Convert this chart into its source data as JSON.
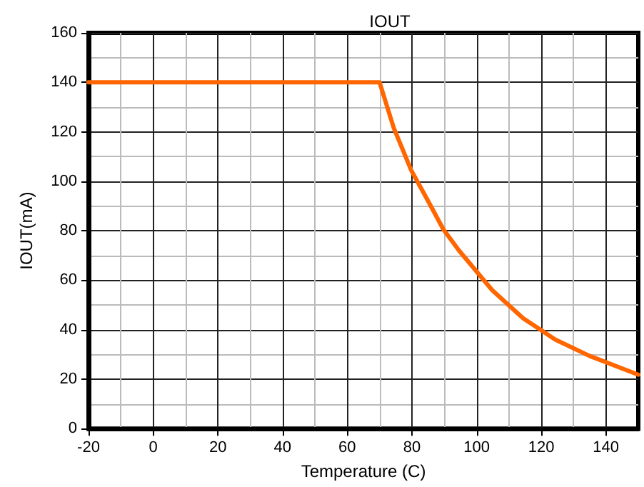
{
  "chart_data": {
    "type": "line",
    "title": "IOUT",
    "xlabel": "Temperature (C)",
    "ylabel": "IOUT(mA)",
    "x": [
      -20,
      70,
      74.4,
      79.8,
      85,
      89.7,
      94.5,
      104.8,
      114.4,
      124.3,
      134.9,
      150
    ],
    "series": [
      {
        "color": "#ff6600",
        "values": [
          140,
          140,
          121.5,
          104.4,
          92,
          80.6,
          72.1,
          56,
          44.6,
          36,
          29.4,
          21.8
        ]
      }
    ],
    "xlim": [
      -20,
      150
    ],
    "xticks": [
      -20,
      0,
      20,
      40,
      60,
      80,
      100,
      120,
      140
    ],
    "ylim": [
      0,
      160
    ],
    "yticks": [
      0,
      20,
      40,
      60,
      80,
      100,
      120,
      140,
      160
    ],
    "grid": true,
    "marker": "none",
    "line_style": "solid"
  }
}
